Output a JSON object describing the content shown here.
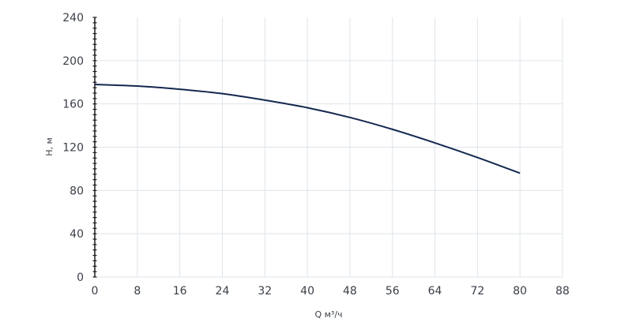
{
  "chart_data": {
    "type": "line",
    "title": "",
    "xlabel": "Q м³/ч",
    "ylabel": "H, м",
    "xlim": [
      0,
      88
    ],
    "ylim": [
      0,
      240
    ],
    "x_ticks": [
      0,
      8,
      16,
      24,
      32,
      40,
      48,
      56,
      64,
      72,
      80,
      88
    ],
    "y_ticks": [
      0,
      40,
      80,
      120,
      160,
      200,
      240
    ],
    "grid": true,
    "series": [
      {
        "color": "#142850",
        "x": [
          0,
          8,
          16,
          24,
          32,
          40,
          48,
          56,
          64,
          72,
          80
        ],
        "y": [
          178,
          176.5,
          173.5,
          169.5,
          163.5,
          156.5,
          147.5,
          136.5,
          124,
          110.5,
          96
        ]
      }
    ]
  }
}
